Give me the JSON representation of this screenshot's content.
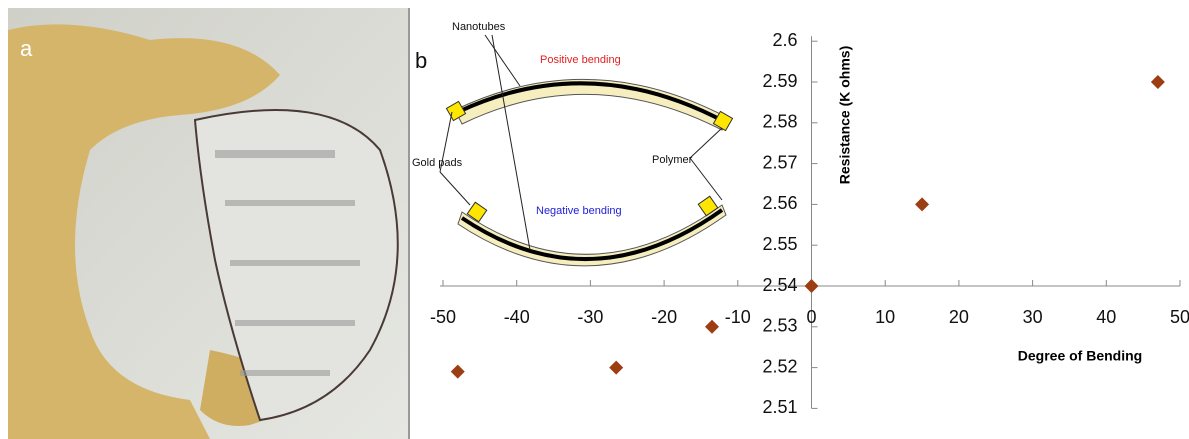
{
  "panels": {
    "a": "a",
    "b": "b"
  },
  "inset": {
    "nanotubes": "Nanotubes",
    "positive": "Positive bending",
    "negative": "Negative bending",
    "gold": "Gold pads",
    "polymer": "Polymer"
  },
  "chart_data": {
    "type": "scatter",
    "x": [
      -48,
      -26.5,
      -13.5,
      0,
      15,
      47
    ],
    "values": [
      2.519,
      2.52,
      2.53,
      2.54,
      2.56,
      2.59
    ],
    "color": "#9c3d12",
    "xlabel": "Degree of Bending",
    "ylabel": "Resistance (K ohms)",
    "xlim": [
      -50,
      50
    ],
    "ylim": [
      2.51,
      2.6
    ],
    "xticks": [
      -50,
      -40,
      -30,
      -20,
      -10,
      0,
      10,
      20,
      30,
      40,
      50
    ],
    "yticks": [
      2.51,
      2.52,
      2.53,
      2.54,
      2.55,
      2.56,
      2.57,
      2.58,
      2.59,
      2.6
    ]
  }
}
